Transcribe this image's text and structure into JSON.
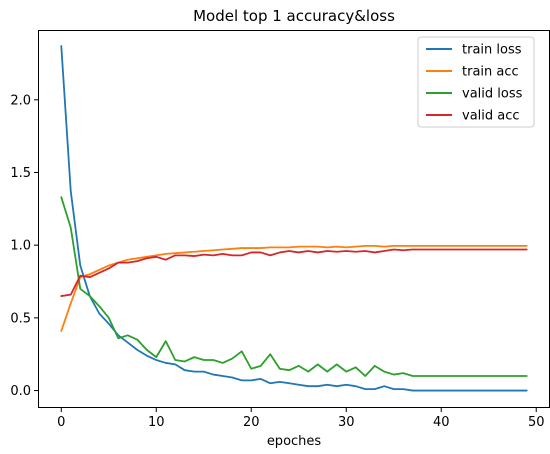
{
  "chart_data": {
    "type": "line",
    "title": "Model top 1 accuracy&loss",
    "xlabel": "epoches",
    "ylabel": "",
    "xlim": [
      -2.45,
      51.45
    ],
    "ylim": [
      -0.12,
      2.48
    ],
    "x_ticks": [
      0,
      10,
      20,
      30,
      40,
      50
    ],
    "y_ticks": [
      0.0,
      0.5,
      1.0,
      1.5,
      2.0
    ],
    "x_tick_labels": [
      "0",
      "10",
      "20",
      "30",
      "40",
      "50"
    ],
    "y_tick_labels": [
      "0.0",
      "0.5",
      "1.0",
      "1.5",
      "2.0"
    ],
    "grid": false,
    "legend_position": "top-right",
    "x": [
      0,
      1,
      2,
      3,
      4,
      5,
      6,
      7,
      8,
      9,
      10,
      11,
      12,
      13,
      14,
      15,
      16,
      17,
      18,
      19,
      20,
      21,
      22,
      23,
      24,
      25,
      26,
      27,
      28,
      29,
      30,
      31,
      32,
      33,
      34,
      35,
      36,
      37,
      38,
      39,
      40,
      41,
      42,
      43,
      44,
      45,
      46,
      47,
      48,
      49
    ],
    "series": [
      {
        "name": "train loss",
        "color": "#1f77b4",
        "values": [
          2.37,
          1.37,
          0.86,
          0.65,
          0.53,
          0.46,
          0.38,
          0.33,
          0.28,
          0.24,
          0.21,
          0.19,
          0.18,
          0.14,
          0.13,
          0.13,
          0.11,
          0.1,
          0.09,
          0.07,
          0.07,
          0.08,
          0.05,
          0.06,
          0.05,
          0.04,
          0.03,
          0.03,
          0.04,
          0.03,
          0.04,
          0.03,
          0.01,
          0.01,
          0.03,
          0.01,
          0.01,
          0.0,
          0.0,
          0.0,
          0.0,
          0.0,
          0.0,
          0.0,
          0.0,
          0.0,
          0.0,
          0.0,
          0.0,
          0.0
        ]
      },
      {
        "name": "train acc",
        "color": "#ff7f0e",
        "values": [
          0.41,
          0.6,
          0.78,
          0.8,
          0.83,
          0.86,
          0.88,
          0.9,
          0.91,
          0.92,
          0.93,
          0.94,
          0.945,
          0.95,
          0.955,
          0.96,
          0.965,
          0.97,
          0.975,
          0.98,
          0.98,
          0.98,
          0.985,
          0.985,
          0.985,
          0.99,
          0.99,
          0.99,
          0.985,
          0.99,
          0.985,
          0.99,
          0.995,
          0.995,
          0.99,
          0.995,
          0.995,
          0.995,
          0.995,
          0.995,
          0.995,
          0.995,
          0.995,
          0.995,
          0.995,
          0.995,
          0.995,
          0.995,
          0.995,
          0.995
        ]
      },
      {
        "name": "valid loss",
        "color": "#2ca02c",
        "values": [
          1.33,
          1.12,
          0.7,
          0.65,
          0.58,
          0.5,
          0.36,
          0.38,
          0.35,
          0.28,
          0.23,
          0.34,
          0.21,
          0.2,
          0.23,
          0.21,
          0.21,
          0.19,
          0.22,
          0.27,
          0.15,
          0.17,
          0.25,
          0.15,
          0.14,
          0.17,
          0.13,
          0.18,
          0.13,
          0.18,
          0.13,
          0.16,
          0.1,
          0.17,
          0.13,
          0.11,
          0.12,
          0.1,
          0.1,
          0.1,
          0.1,
          0.1,
          0.1,
          0.1,
          0.1,
          0.1,
          0.1,
          0.1,
          0.1,
          0.1
        ]
      },
      {
        "name": "valid acc",
        "color": "#d62728",
        "values": [
          0.65,
          0.66,
          0.79,
          0.78,
          0.81,
          0.84,
          0.88,
          0.88,
          0.89,
          0.91,
          0.92,
          0.9,
          0.93,
          0.93,
          0.925,
          0.935,
          0.93,
          0.94,
          0.93,
          0.93,
          0.95,
          0.95,
          0.93,
          0.95,
          0.96,
          0.95,
          0.96,
          0.95,
          0.96,
          0.955,
          0.96,
          0.955,
          0.96,
          0.95,
          0.96,
          0.97,
          0.965,
          0.97,
          0.97,
          0.97,
          0.97,
          0.97,
          0.97,
          0.97,
          0.97,
          0.97,
          0.97,
          0.97,
          0.97,
          0.97
        ]
      }
    ]
  }
}
